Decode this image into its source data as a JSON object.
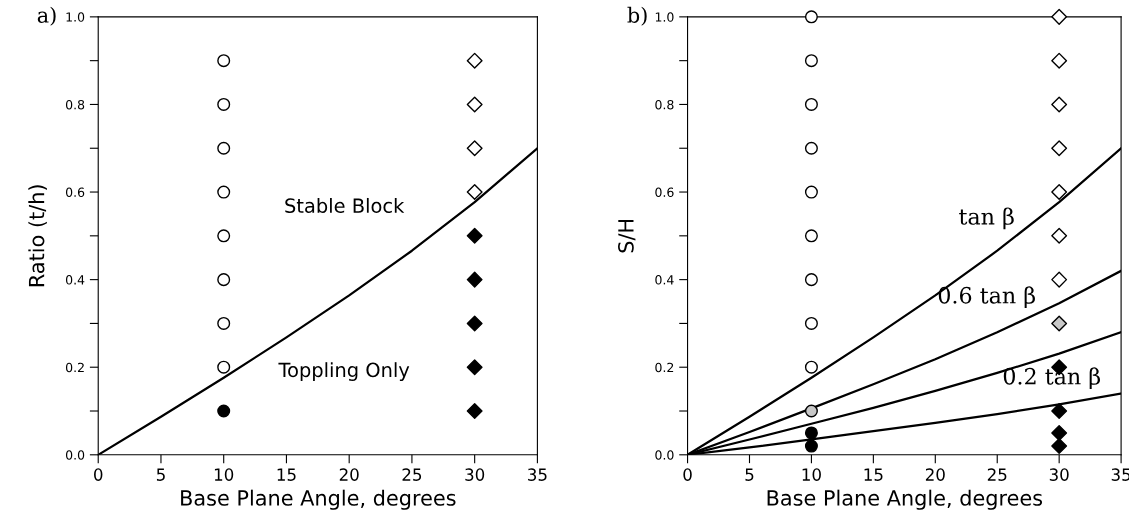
{
  "chart_data": [
    {
      "type": "scatter",
      "title": "a)",
      "xlabel": "Base Plane Angle, degrees",
      "ylabel": "Ratio (t/h)",
      "xlim": [
        0,
        35
      ],
      "ylim": [
        0,
        1.0
      ],
      "xticks": [
        0,
        5,
        10,
        15,
        20,
        25,
        30,
        35
      ],
      "yticks": [
        "0.0",
        {
          "value": 0.1,
          "label": null
        },
        0.2,
        {
          "value": 0.3,
          "label": null
        },
        0.4,
        {
          "value": 0.5,
          "label": null
        },
        0.6,
        {
          "value": 0.7,
          "label": null
        },
        0.8,
        {
          "value": 0.9,
          "label": null
        },
        {
          "value": 1.0,
          "label": "1.0"
        }
      ],
      "grid": false,
      "legend": false,
      "series": [
        {
          "type": "scatter",
          "marker": "circle",
          "color": "#ffffff",
          "x": [
            10,
            10,
            10,
            10,
            10,
            10,
            10,
            10
          ],
          "values": [
            0.2,
            0.3,
            0.4,
            0.5,
            0.6,
            0.7,
            0.8,
            0.9
          ]
        },
        {
          "type": "scatter",
          "marker": "circle",
          "color": "#000000",
          "x": [
            10
          ],
          "values": [
            0.1
          ]
        },
        {
          "type": "scatter",
          "marker": "diamond",
          "color": "#ffffff",
          "x": [
            30,
            30,
            30,
            30
          ],
          "values": [
            0.6,
            0.7,
            0.8,
            0.9
          ]
        },
        {
          "type": "scatter",
          "marker": "diamond",
          "color": "#000000",
          "x": [
            30,
            30,
            30,
            30,
            30
          ],
          "values": [
            0.1,
            0.2,
            0.3,
            0.4,
            0.5
          ]
        },
        {
          "type": "line",
          "marker": "none",
          "line_style": "solid",
          "color": "#000000",
          "x": [
            0,
            5,
            10,
            15,
            20,
            25,
            30,
            35
          ],
          "values": [
            0,
            0.087,
            0.176,
            0.268,
            0.364,
            0.466,
            0.577,
            0.7
          ]
        }
      ],
      "annotations": [
        "Stable Block",
        "Toppling Only"
      ]
    },
    {
      "type": "scatter",
      "title": "b)",
      "xlabel": "Base Plane Angle, degrees",
      "ylabel": "S/H",
      "xlim": [
        0,
        35
      ],
      "ylim": [
        0,
        1.0
      ],
      "xticks": [
        0,
        5,
        10,
        15,
        20,
        25,
        30,
        35
      ],
      "yticks": [
        "0.0",
        {
          "value": 0.1,
          "label": null
        },
        0.2,
        {
          "value": 0.3,
          "label": null
        },
        0.4,
        {
          "value": 0.5,
          "label": null
        },
        0.6,
        {
          "value": 0.7,
          "label": null
        },
        0.8,
        {
          "value": 0.9,
          "label": null
        },
        {
          "value": 1.0,
          "label": "1.0"
        }
      ],
      "grid": false,
      "legend": false,
      "series": [
        {
          "type": "scatter",
          "marker": "circle",
          "color": "#ffffff",
          "x": [
            10,
            10,
            10,
            10,
            10,
            10,
            10,
            10,
            10
          ],
          "values": [
            0.2,
            0.3,
            0.4,
            0.5,
            0.6,
            0.7,
            0.8,
            0.9,
            1.0
          ]
        },
        {
          "type": "scatter",
          "marker": "circle",
          "color": "#c8c8c8",
          "x": [
            10
          ],
          "values": [
            0.1
          ]
        },
        {
          "type": "scatter",
          "marker": "circle",
          "color": "#000000",
          "x": [
            10,
            10
          ],
          "values": [
            0.02,
            0.05
          ]
        },
        {
          "type": "scatter",
          "marker": "diamond",
          "color": "#ffffff",
          "x": [
            30,
            30,
            30,
            30,
            30,
            30,
            30
          ],
          "values": [
            0.4,
            0.5,
            0.6,
            0.7,
            0.8,
            0.9,
            1.0
          ]
        },
        {
          "type": "scatter",
          "marker": "diamond",
          "color": "#c8c8c8",
          "x": [
            30
          ],
          "values": [
            0.3
          ]
        },
        {
          "type": "scatter",
          "marker": "diamond",
          "color": "#000000",
          "x": [
            30,
            30,
            30,
            30
          ],
          "values": [
            0.02,
            0.05,
            0.1,
            0.2
          ]
        },
        {
          "type": "line",
          "marker": "none",
          "line_style": "solid",
          "color": "#000000",
          "x": [
            0,
            5,
            10,
            15,
            20,
            25,
            30,
            35
          ],
          "values": [
            0,
            0.087,
            0.176,
            0.268,
            0.364,
            0.466,
            0.577,
            0.7
          ]
        },
        {
          "type": "line",
          "marker": "none",
          "line_style": "solid",
          "color": "#000000",
          "x": [
            0,
            5,
            10,
            15,
            20,
            25,
            30,
            35
          ],
          "values": [
            0,
            0.052,
            0.106,
            0.161,
            0.218,
            0.28,
            0.346,
            0.42
          ]
        },
        {
          "type": "line",
          "marker": "none",
          "line_style": "solid",
          "color": "#000000",
          "x": [
            0,
            5,
            10,
            15,
            20,
            25,
            30,
            35
          ],
          "values": [
            0,
            0.035,
            0.071,
            0.107,
            0.146,
            0.187,
            0.231,
            0.28
          ]
        },
        {
          "type": "line",
          "marker": "none",
          "line_style": "solid",
          "color": "#000000",
          "x": [
            0,
            5,
            10,
            15,
            20,
            25,
            30,
            35
          ],
          "values": [
            0,
            0.017,
            0.035,
            0.054,
            0.073,
            0.093,
            0.115,
            0.14
          ]
        }
      ],
      "annotations": [
        "tan β",
        "0.6 tan β",
        "0.2 tan β"
      ]
    }
  ]
}
